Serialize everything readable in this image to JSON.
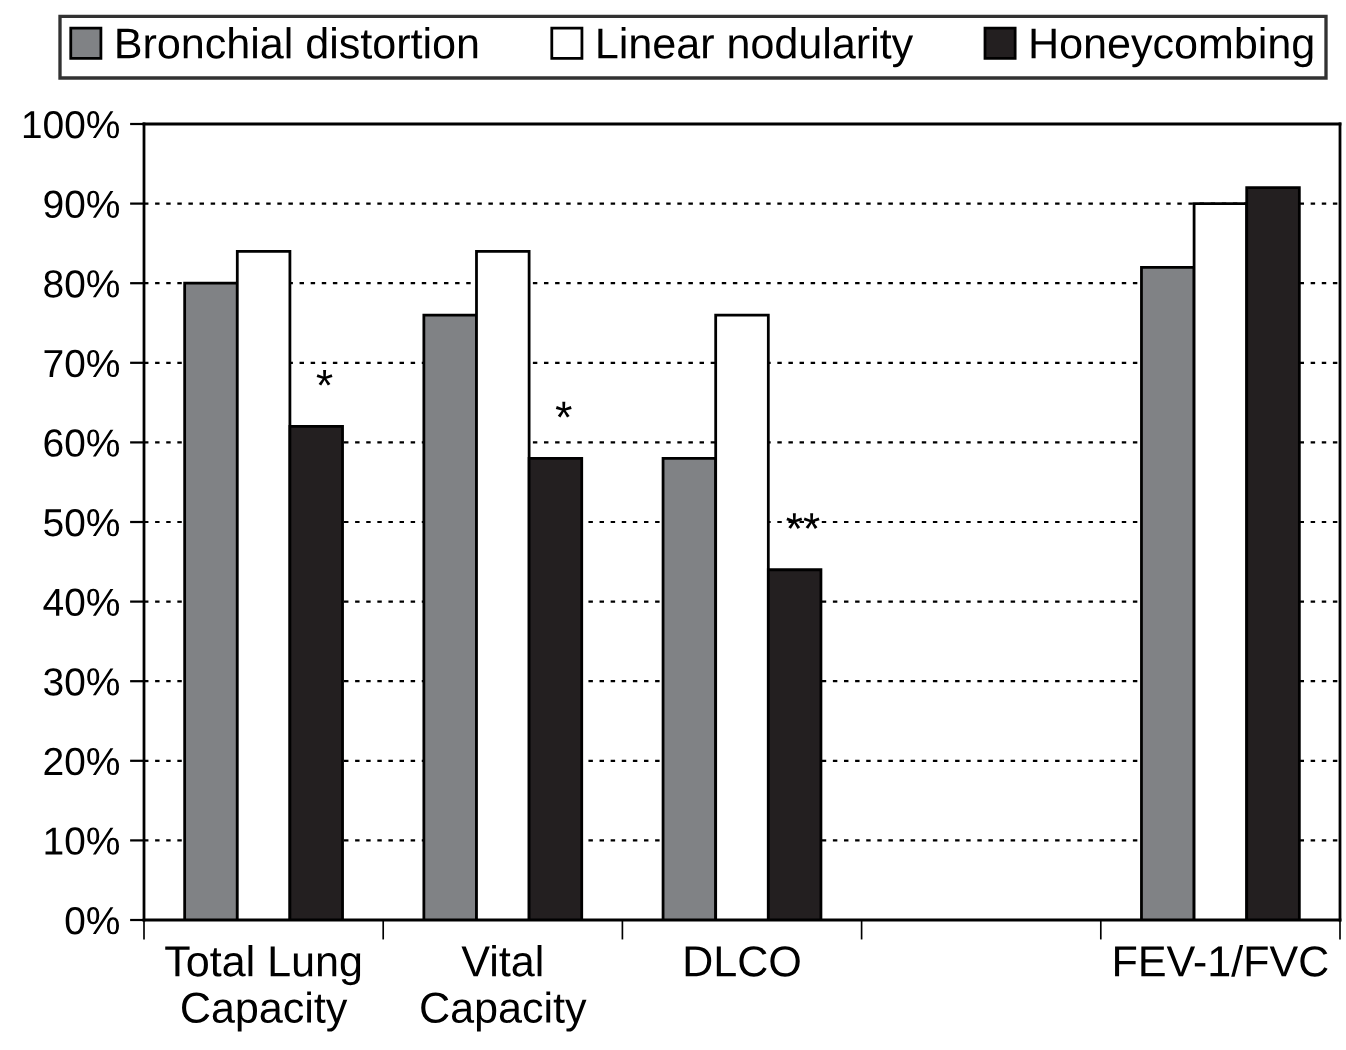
{
  "chart_data": {
    "type": "bar",
    "categories": [
      "Total Lung Capacity",
      "Vital Capacity",
      "DLCO",
      null,
      "FEV-1/FVC"
    ],
    "series": [
      {
        "name": "Bronchial distortion",
        "color": "#808285",
        "values": [
          80,
          76,
          58,
          null,
          82
        ]
      },
      {
        "name": "Linear nodularity",
        "color": "#ffffff",
        "values": [
          84,
          84,
          76,
          null,
          90
        ]
      },
      {
        "name": "Honeycombing",
        "color": "#231f20",
        "values": [
          62,
          58,
          44,
          null,
          92
        ]
      }
    ],
    "ylim": [
      0,
      100
    ],
    "yticks": [
      {
        "value": 0,
        "label": "0%"
      },
      {
        "value": 10,
        "label": "10%"
      },
      {
        "value": 20,
        "label": "20%"
      },
      {
        "value": 30,
        "label": "30%"
      },
      {
        "value": 40,
        "label": "40%"
      },
      {
        "value": 50,
        "label": "50%"
      },
      {
        "value": 60,
        "label": "60%"
      },
      {
        "value": 70,
        "label": "70%"
      },
      {
        "value": 80,
        "label": "80%"
      },
      {
        "value": 90,
        "label": "90%"
      },
      {
        "value": 100,
        "label": "100%"
      }
    ],
    "grid": "y",
    "legend": "top",
    "annotations": [
      "*",
      "*",
      "**"
    ]
  }
}
